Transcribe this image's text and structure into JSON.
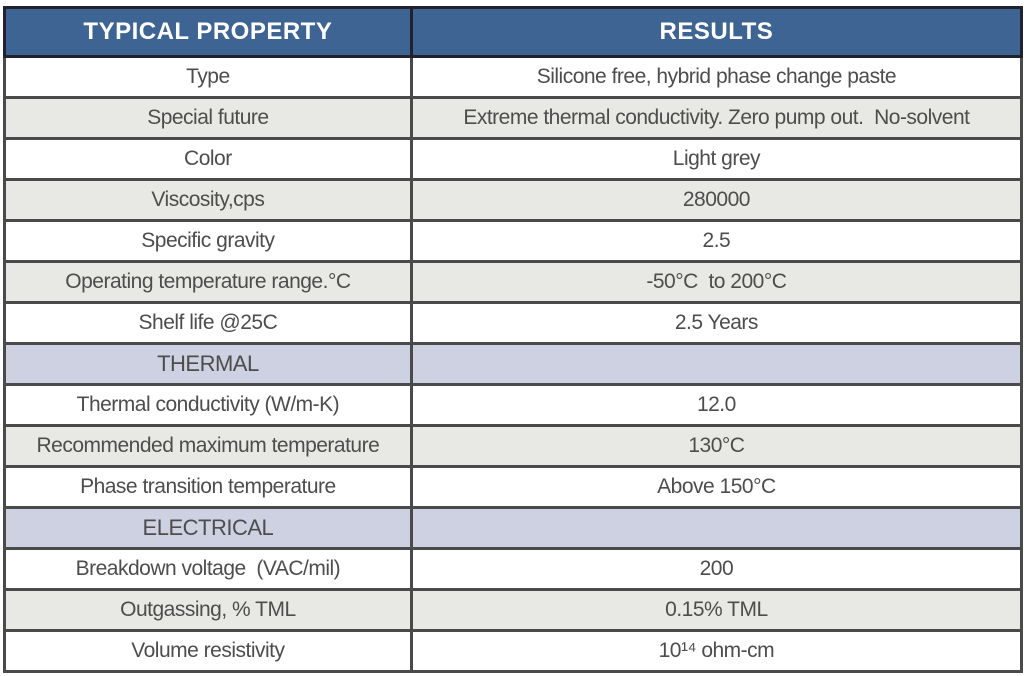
{
  "table": {
    "columns": [
      "TYPICAL PROPERTY",
      "RESULTS"
    ],
    "rows": [
      {
        "property": "Type",
        "result": "Silicone free, hybrid phase change paste",
        "shade": "white",
        "property_color": "dark",
        "result_color": "dark"
      },
      {
        "property": "Special future",
        "result": "Extreme thermal conductivity. Zero pump out.  No-solvent",
        "shade": "grey",
        "property_color": "blue",
        "result_color": "blue"
      },
      {
        "property": "Color",
        "result": "Light grey",
        "shade": "white",
        "property_color": "dark",
        "result_color": "dark"
      },
      {
        "property": "Viscosity,cps",
        "result": "280000",
        "shade": "grey",
        "property_color": "dark",
        "result_color": "dark"
      },
      {
        "property": "Specific gravity",
        "result": "2.5",
        "shade": "white",
        "property_color": "dark",
        "result_color": "dark"
      },
      {
        "property": "Operating temperature range.°C",
        "result": "-50°C  to 200°C",
        "shade": "grey",
        "property_color": "dark",
        "result_color": "dark"
      },
      {
        "property": "Shelf life @25C",
        "result": "2.5 Years",
        "shade": "white",
        "property_color": "dark",
        "result_color": "dark"
      },
      {
        "property": "THERMAL",
        "result": "",
        "shade": "section",
        "property_color": "blue",
        "result_color": "blue"
      },
      {
        "property": "Thermal conductivity (W/m-K)",
        "result": "12.0",
        "shade": "white",
        "property_color": "dark",
        "result_color": "blue"
      },
      {
        "property": "Recommended maximum temperature",
        "result": "130°C",
        "shade": "grey",
        "property_color": "dark",
        "result_color": "blue"
      },
      {
        "property": "Phase transition temperature",
        "result": "Above 150°C",
        "shade": "white",
        "property_color": "dark",
        "result_color": "blue"
      },
      {
        "property": "ELECTRICAL",
        "result": "",
        "shade": "section",
        "property_color": "blue",
        "result_color": "blue"
      },
      {
        "property": "Breakdown voltage  (VAC/mil)",
        "result": "200",
        "shade": "white",
        "property_color": "dark",
        "result_color": "dark"
      },
      {
        "property": "Outgassing, % TML",
        "result": "0.15% TML",
        "shade": "grey",
        "property_color": "dark",
        "result_color": "dark"
      },
      {
        "property": "Volume resistivity",
        "result": "10¹⁴ ohm-cm",
        "shade": "white",
        "property_color": "dark",
        "result_color": "dark"
      }
    ]
  },
  "colors": {
    "header_bg": "#3e6494",
    "header_text": "#ffffff",
    "row_grey_bg": "#e8e9e4",
    "section_bg": "#cdd1e2",
    "accent_blue_text": "#32619e",
    "body_text": "#4d4d4d",
    "border": "#4a4a4a"
  }
}
